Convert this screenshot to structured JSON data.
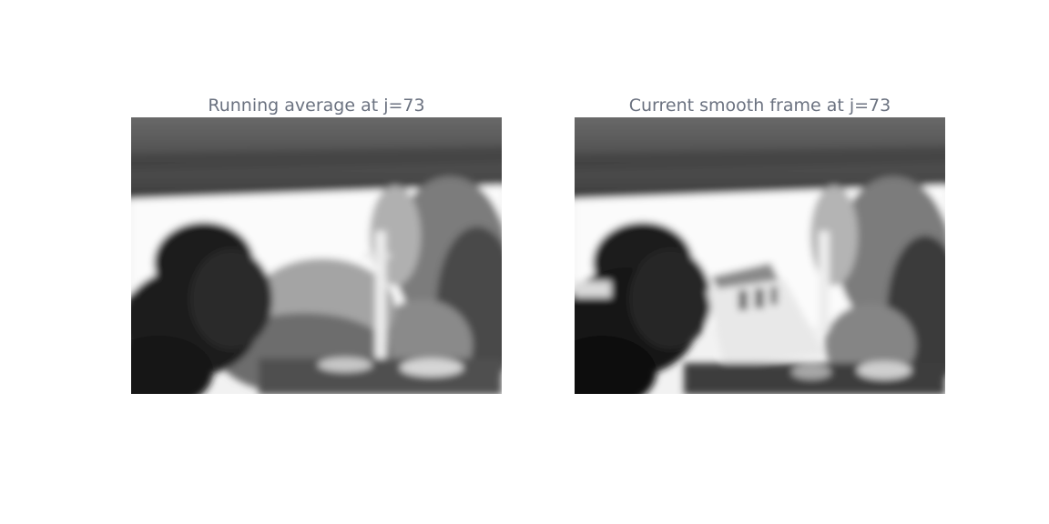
{
  "panels": [
    {
      "title": "Running average at j=73",
      "image_content": "blurred-grayscale-street-scene-background"
    },
    {
      "title": "Current smooth frame at j=73",
      "image_content": "blurred-grayscale-street-scene-with-vehicle"
    }
  ],
  "colors": {
    "title_text": "#6b7280",
    "background": "#ffffff"
  }
}
